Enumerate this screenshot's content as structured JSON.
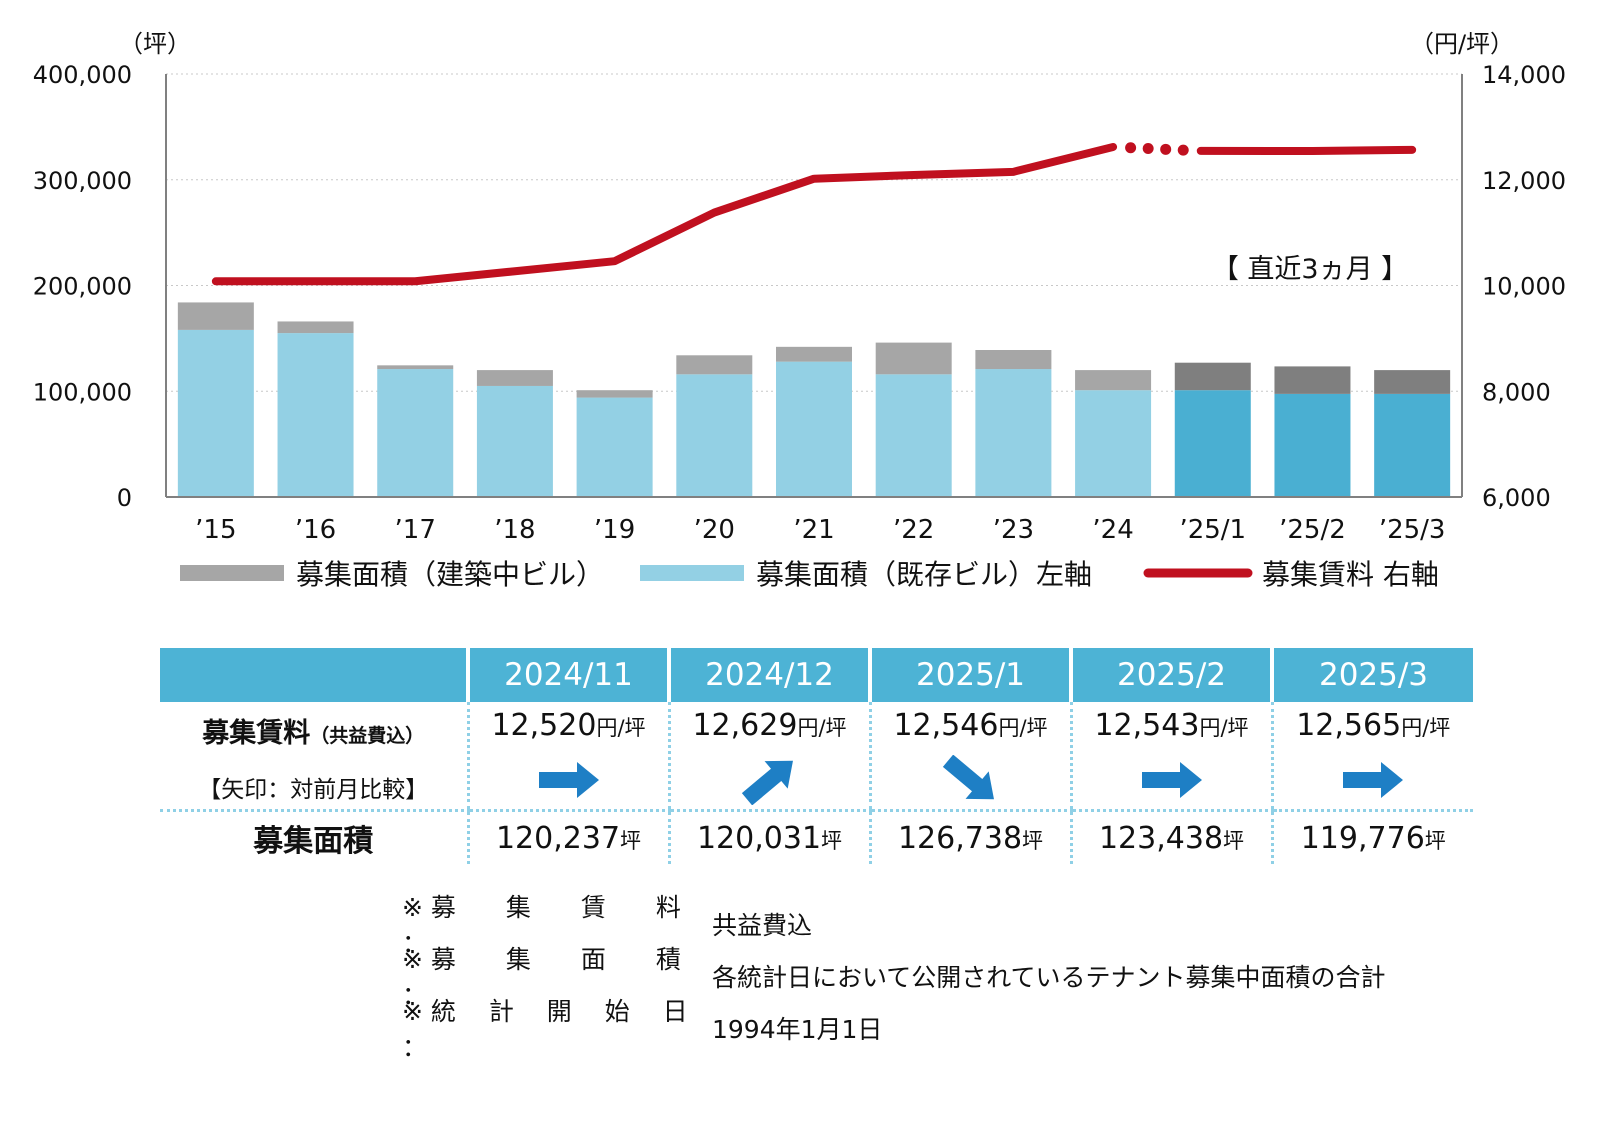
{
  "chart_data": {
    "type": "bar+line",
    "categories": [
      "’15",
      "’16",
      "’17",
      "’18",
      "’19",
      "’20",
      "’21",
      "’22",
      "’23",
      "’24",
      "’25/1",
      "’25/2",
      "’25/3"
    ],
    "series": [
      {
        "name": "募集面積（建築中ビル）",
        "type": "stacked-bar",
        "axis": "left",
        "values": [
          26000,
          11000,
          3500,
          15000,
          7000,
          18000,
          14000,
          30000,
          18000,
          19000,
          26000,
          26000,
          22500
        ],
        "color": "#a6a6a6",
        "recent_color": "#7f7f7f"
      },
      {
        "name": "募集面積（既存ビル）左軸",
        "type": "stacked-bar",
        "axis": "left",
        "values": [
          158000,
          155000,
          121000,
          105000,
          94000,
          116000,
          128000,
          116000,
          121000,
          101000,
          101000,
          97500,
          97500
        ],
        "color": "#93d0e4",
        "recent_color": "#4aafd2"
      },
      {
        "name": "募集賃料 右軸",
        "type": "line",
        "axis": "right",
        "values": [
          10080,
          10080,
          10080,
          10270,
          10460,
          11380,
          12020,
          12090,
          12150,
          12620,
          12546,
          12543,
          12565
        ],
        "color": "#c0101f"
      }
    ],
    "left_axis": {
      "unit": "（坪）",
      "range": [
        0,
        400000
      ],
      "ticks": [
        "0",
        "100,000",
        "200,000",
        "300,000",
        "400,000"
      ]
    },
    "right_axis": {
      "unit": "（円/坪）",
      "range": [
        6000,
        14000
      ],
      "ticks": [
        "6,000",
        "8,000",
        "10,000",
        "12,000",
        "14,000"
      ]
    },
    "annotation": "【 直近3ヵ月 】",
    "legend_position": "bottom",
    "grid": true
  },
  "table": {
    "headers": [
      "2024/11",
      "2024/12",
      "2025/1",
      "2025/2",
      "2025/3"
    ],
    "rent_label": "募集賃料",
    "rent_label_sub": "（共益費込）",
    "arrow_label": "【矢印：対前月比較】",
    "rent_values": [
      "12,520",
      "12,629",
      "12,546",
      "12,543",
      "12,565"
    ],
    "rent_unit": "円/坪",
    "arrows": [
      "flat",
      "up",
      "down",
      "flat",
      "flat"
    ],
    "area_label": "募集面積",
    "area_values": [
      "120,237",
      "120,031",
      "126,738",
      "123,438",
      "119,776"
    ],
    "area_unit": "坪",
    "accent_color": "#4db3d5",
    "arrow_color": "#1e7fc5"
  },
  "notes": [
    {
      "label": "※ 募　　集　　賃　　料 ：",
      "value": "共益費込"
    },
    {
      "label": "※ 募　　集　　面　　積 ：",
      "value": "各統計日において公開されているテナント募集中面積の合計"
    },
    {
      "label": "※ 統　 計　 開　 始　 日 ：",
      "value": "1994年1月1日"
    }
  ]
}
